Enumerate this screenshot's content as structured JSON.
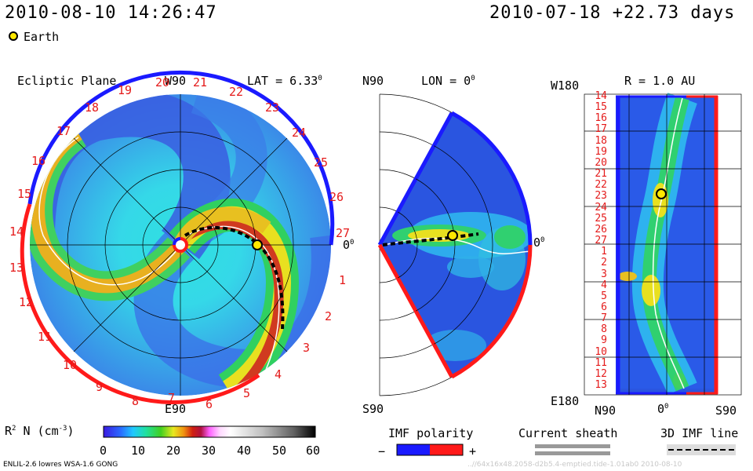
{
  "header": {
    "datetime": "2010-08-10 14:26:47",
    "reference": "2010-07-18 +22.73 days",
    "legend_earth": "Earth"
  },
  "ecliptic": {
    "title": "Ecliptic Plane",
    "top_label": "W90",
    "bottom_label": "E90",
    "lat": "LAT = 6.33",
    "lat_unit": "0",
    "right_angle": "0",
    "right_angle_unit": "0",
    "rotation_labels": [
      "13",
      "14",
      "15",
      "16",
      "17",
      "18",
      "19",
      "20",
      "21",
      "22",
      "23",
      "24",
      "25",
      "26",
      "27",
      "1",
      "2",
      "3",
      "4",
      "5",
      "6",
      "7",
      "8",
      "9",
      "10",
      "11",
      "12"
    ]
  },
  "meridional": {
    "top_left": "N90",
    "lon": "LON = 0",
    "lon_unit": "0",
    "bottom_left": "S90",
    "right_angle": "0",
    "right_angle_unit": "0"
  },
  "latlon": {
    "top_left": "W180",
    "r_label": "R = 1.0 AU",
    "bottom_left": "E180",
    "x_left": "N90",
    "x_mid": "0",
    "x_mid_unit": "0",
    "x_right": "S90",
    "rotation_labels": [
      "14",
      "15",
      "16",
      "17",
      "18",
      "19",
      "20",
      "21",
      "22",
      "23",
      "24",
      "25",
      "26",
      "27",
      "1",
      "2",
      "3",
      "4",
      "5",
      "6",
      "7",
      "8",
      "9",
      "10",
      "11",
      "12",
      "13"
    ]
  },
  "colorbar": {
    "label": "R",
    "label_sup": "2",
    "label_rest": " N (cm",
    "label_sup2": "-3",
    "label_end": ")",
    "ticks": [
      "0",
      "10",
      "20",
      "30",
      "40",
      "50",
      "60"
    ]
  },
  "legends": {
    "imf_polarity": "IMF polarity",
    "minus": "−",
    "plus": "+",
    "current_sheath": "Current sheath",
    "imf_line": "3D IMF line"
  },
  "footer": {
    "model": "ENLIL-2.6 lowres WSA-1.6 GONG",
    "watermark": "..//64x16x48.2058-d2b5.4-emptied.tide-1.01ab0   2010-08-10"
  },
  "colors": {
    "blue_pole": "#1a1aff",
    "red_pole": "#ff1a1a",
    "bg_low": "#2a4fd8",
    "mid": "#20d0e8",
    "high": "#f0e020",
    "peak": "#e04020"
  }
}
